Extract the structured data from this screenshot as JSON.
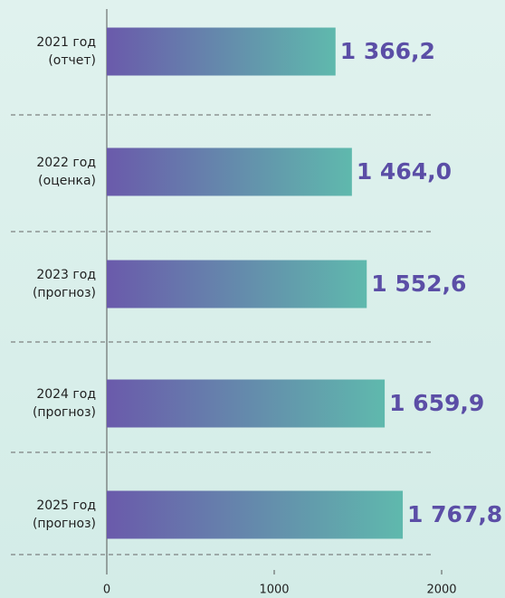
{
  "chart_data": {
    "type": "bar",
    "orientation": "horizontal",
    "categories": [
      "2021 год\n(отчет)",
      "2022 год\n(оценка)",
      "2023 год\n(прогноз)",
      "2024 год\n(прогноз)",
      "2025 год\n(прогноз)"
    ],
    "values": [
      1366.2,
      1464.0,
      1552.6,
      1659.9,
      1767.8
    ],
    "value_labels": [
      "1 366,2",
      "1 464,0",
      "1 552,6",
      "1 659,9",
      "1 767,8"
    ],
    "color": [
      "#6a5aab",
      "#5fb9ad"
    ],
    "xlim": [
      0,
      2000
    ],
    "xticks": [
      0,
      1000,
      2000
    ],
    "grid": false
  }
}
